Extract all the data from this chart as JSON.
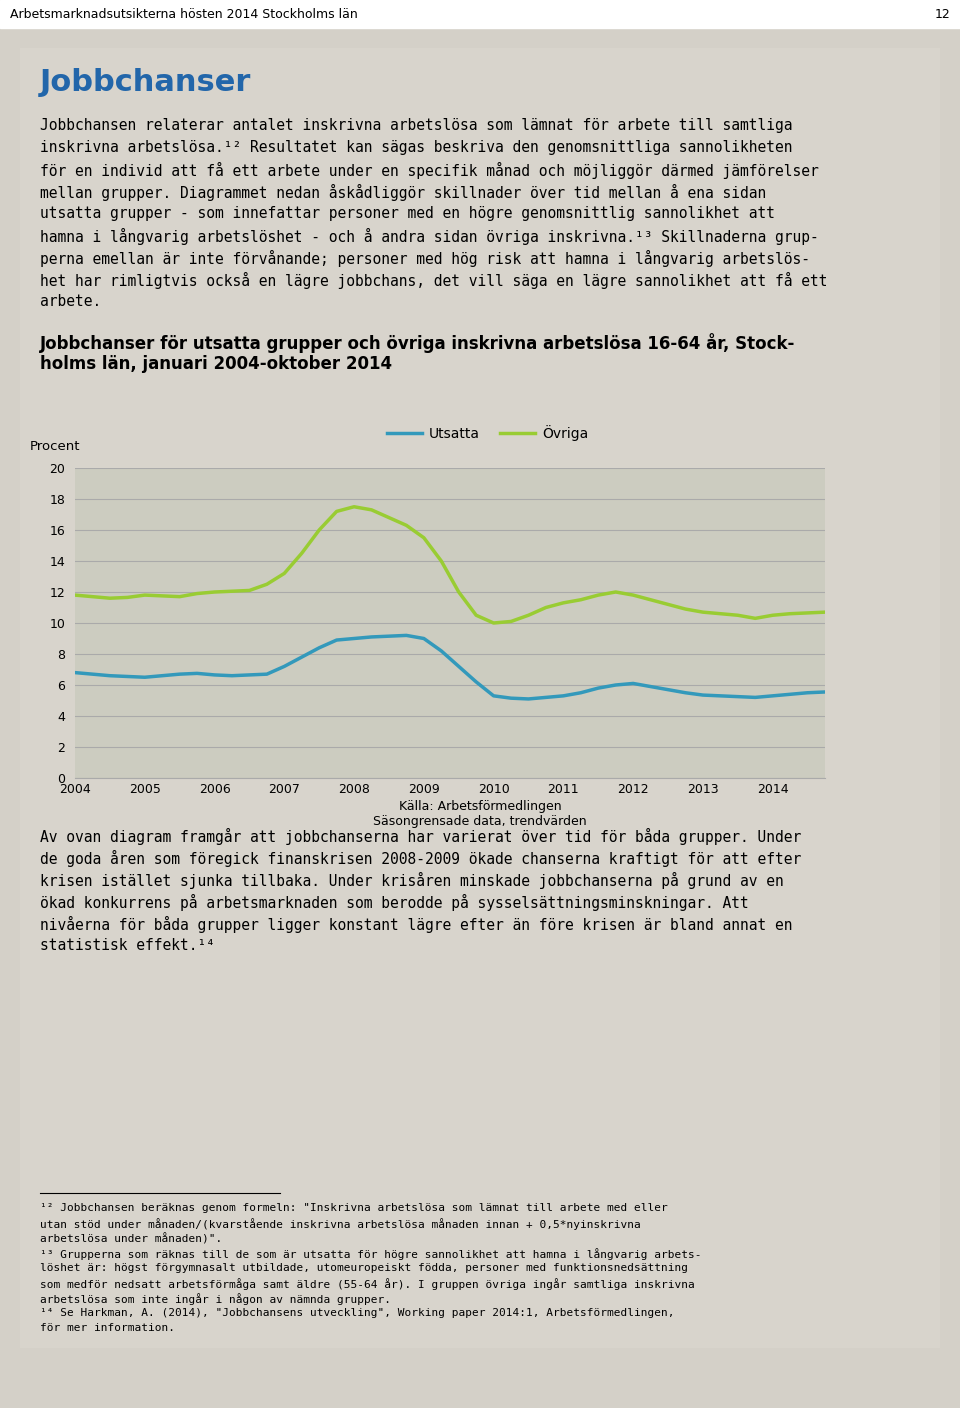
{
  "page_title": "Arbetsmarknadsutsikterna hösten 2014 Stockholms län",
  "page_number": "12",
  "section_title": "Jobbchanser",
  "chart_title_line1": "Jobbchanser för utsatta grupper och övriga inskrivna arbetslösa 16-64 år, Stock-",
  "chart_title_line2": "holms län, januari 2004-oktober 2014",
  "ylabel": "Procent",
  "source_line1": "Källa: Arbetsförmedlingen",
  "source_line2": "Säsongrensade data, trendvärden",
  "ylim": [
    0,
    20
  ],
  "yticks": [
    0,
    2,
    4,
    6,
    8,
    10,
    12,
    14,
    16,
    18,
    20
  ],
  "xtick_labels": [
    "2004",
    "2005",
    "2006",
    "2007",
    "2008",
    "2009",
    "2010",
    "2011",
    "2012",
    "2013",
    "2014"
  ],
  "legend_utsatta": "Utsatta",
  "legend_ovriga": "Övriga",
  "color_utsatta": "#3399BB",
  "color_ovriga": "#99CC33",
  "background_color": "#D4D0C8",
  "plot_bg_color": "#CCCCC0",
  "grid_color": "#AAAAAA",
  "body_text": [
    "Jobbchansen relaterar antalet inskrivna arbetslösa som lämnat för arbete till samtliga",
    "inskrivna arbetslösa.¹² Resultatet kan sägas beskriva den genomsnittliga sannolikheten",
    "för en individ att få ett arbete under en specifik månad och möjliggör därmed jämförelser",
    "mellan grupper. Diagrammet nedan åskådliggör skillnader över tid mellan å ena sidan",
    "utsatta grupper - som innefattar personer med en högre genomsnittlig sannolikhet att",
    "hamna i långvarig arbetslöshet - och å andra sidan övriga inskrivna.¹³ Skillnaderna grup-",
    "perna emellan är inte förvånande; personer med hög risk att hamna i långvarig arbetslös-",
    "het har rimligtvis också en lägre jobbchans, det vill säga en lägre sannolikhet att få ett",
    "arbete."
  ],
  "after_text": [
    "Av ovan diagram framgår att jobbchanserna har varierat över tid för båda grupper. Under",
    "de goda åren som föregick finanskrisen 2008-2009 ökade chanserna kraftigt för att efter",
    "krisen istället sjunka tillbaka. Under krisåren minskade jobbchanserna på grund av en",
    "ökad konkurrens på arbetsmarknaden som berodde på sysselsättningsminskningar. Att",
    "nivåerna för båda grupper ligger konstant lägre efter än före krisen är bland annat en",
    "statistisk effekt.¹⁴"
  ],
  "utsatta_x": [
    2004,
    2004.25,
    2004.5,
    2004.75,
    2005,
    2005.25,
    2005.5,
    2005.75,
    2006,
    2006.25,
    2006.5,
    2006.75,
    2007,
    2007.25,
    2007.5,
    2007.75,
    2008,
    2008.25,
    2008.5,
    2008.75,
    2009,
    2009.25,
    2009.5,
    2009.75,
    2010,
    2010.25,
    2010.5,
    2010.75,
    2011,
    2011.25,
    2011.5,
    2011.75,
    2012,
    2012.25,
    2012.5,
    2012.75,
    2013,
    2013.25,
    2013.5,
    2013.75,
    2014,
    2014.25,
    2014.5,
    2014.75
  ],
  "utsatta_y": [
    6.8,
    6.7,
    6.6,
    6.55,
    6.5,
    6.6,
    6.7,
    6.75,
    6.65,
    6.6,
    6.65,
    6.7,
    7.2,
    7.8,
    8.4,
    8.9,
    9.0,
    9.1,
    9.15,
    9.2,
    9.0,
    8.2,
    7.2,
    6.2,
    5.3,
    5.15,
    5.1,
    5.2,
    5.3,
    5.5,
    5.8,
    6.0,
    6.1,
    5.9,
    5.7,
    5.5,
    5.35,
    5.3,
    5.25,
    5.2,
    5.3,
    5.4,
    5.5,
    5.55
  ],
  "ovriga_x": [
    2004,
    2004.25,
    2004.5,
    2004.75,
    2005,
    2005.25,
    2005.5,
    2005.75,
    2006,
    2006.25,
    2006.5,
    2006.75,
    2007,
    2007.25,
    2007.5,
    2007.75,
    2008,
    2008.25,
    2008.5,
    2008.75,
    2009,
    2009.25,
    2009.5,
    2009.75,
    2010,
    2010.25,
    2010.5,
    2010.75,
    2011,
    2011.25,
    2011.5,
    2011.75,
    2012,
    2012.25,
    2012.5,
    2012.75,
    2013,
    2013.25,
    2013.5,
    2013.75,
    2014,
    2014.25,
    2014.5,
    2014.75
  ],
  "ovriga_y": [
    11.8,
    11.7,
    11.6,
    11.65,
    11.8,
    11.75,
    11.7,
    11.9,
    12.0,
    12.05,
    12.1,
    12.5,
    13.2,
    14.5,
    16.0,
    17.2,
    17.5,
    17.3,
    16.8,
    16.3,
    15.5,
    14.0,
    12.0,
    10.5,
    10.0,
    10.1,
    10.5,
    11.0,
    11.3,
    11.5,
    11.8,
    12.0,
    11.8,
    11.5,
    11.2,
    10.9,
    10.7,
    10.6,
    10.5,
    10.3,
    10.5,
    10.6,
    10.65,
    10.7
  ]
}
